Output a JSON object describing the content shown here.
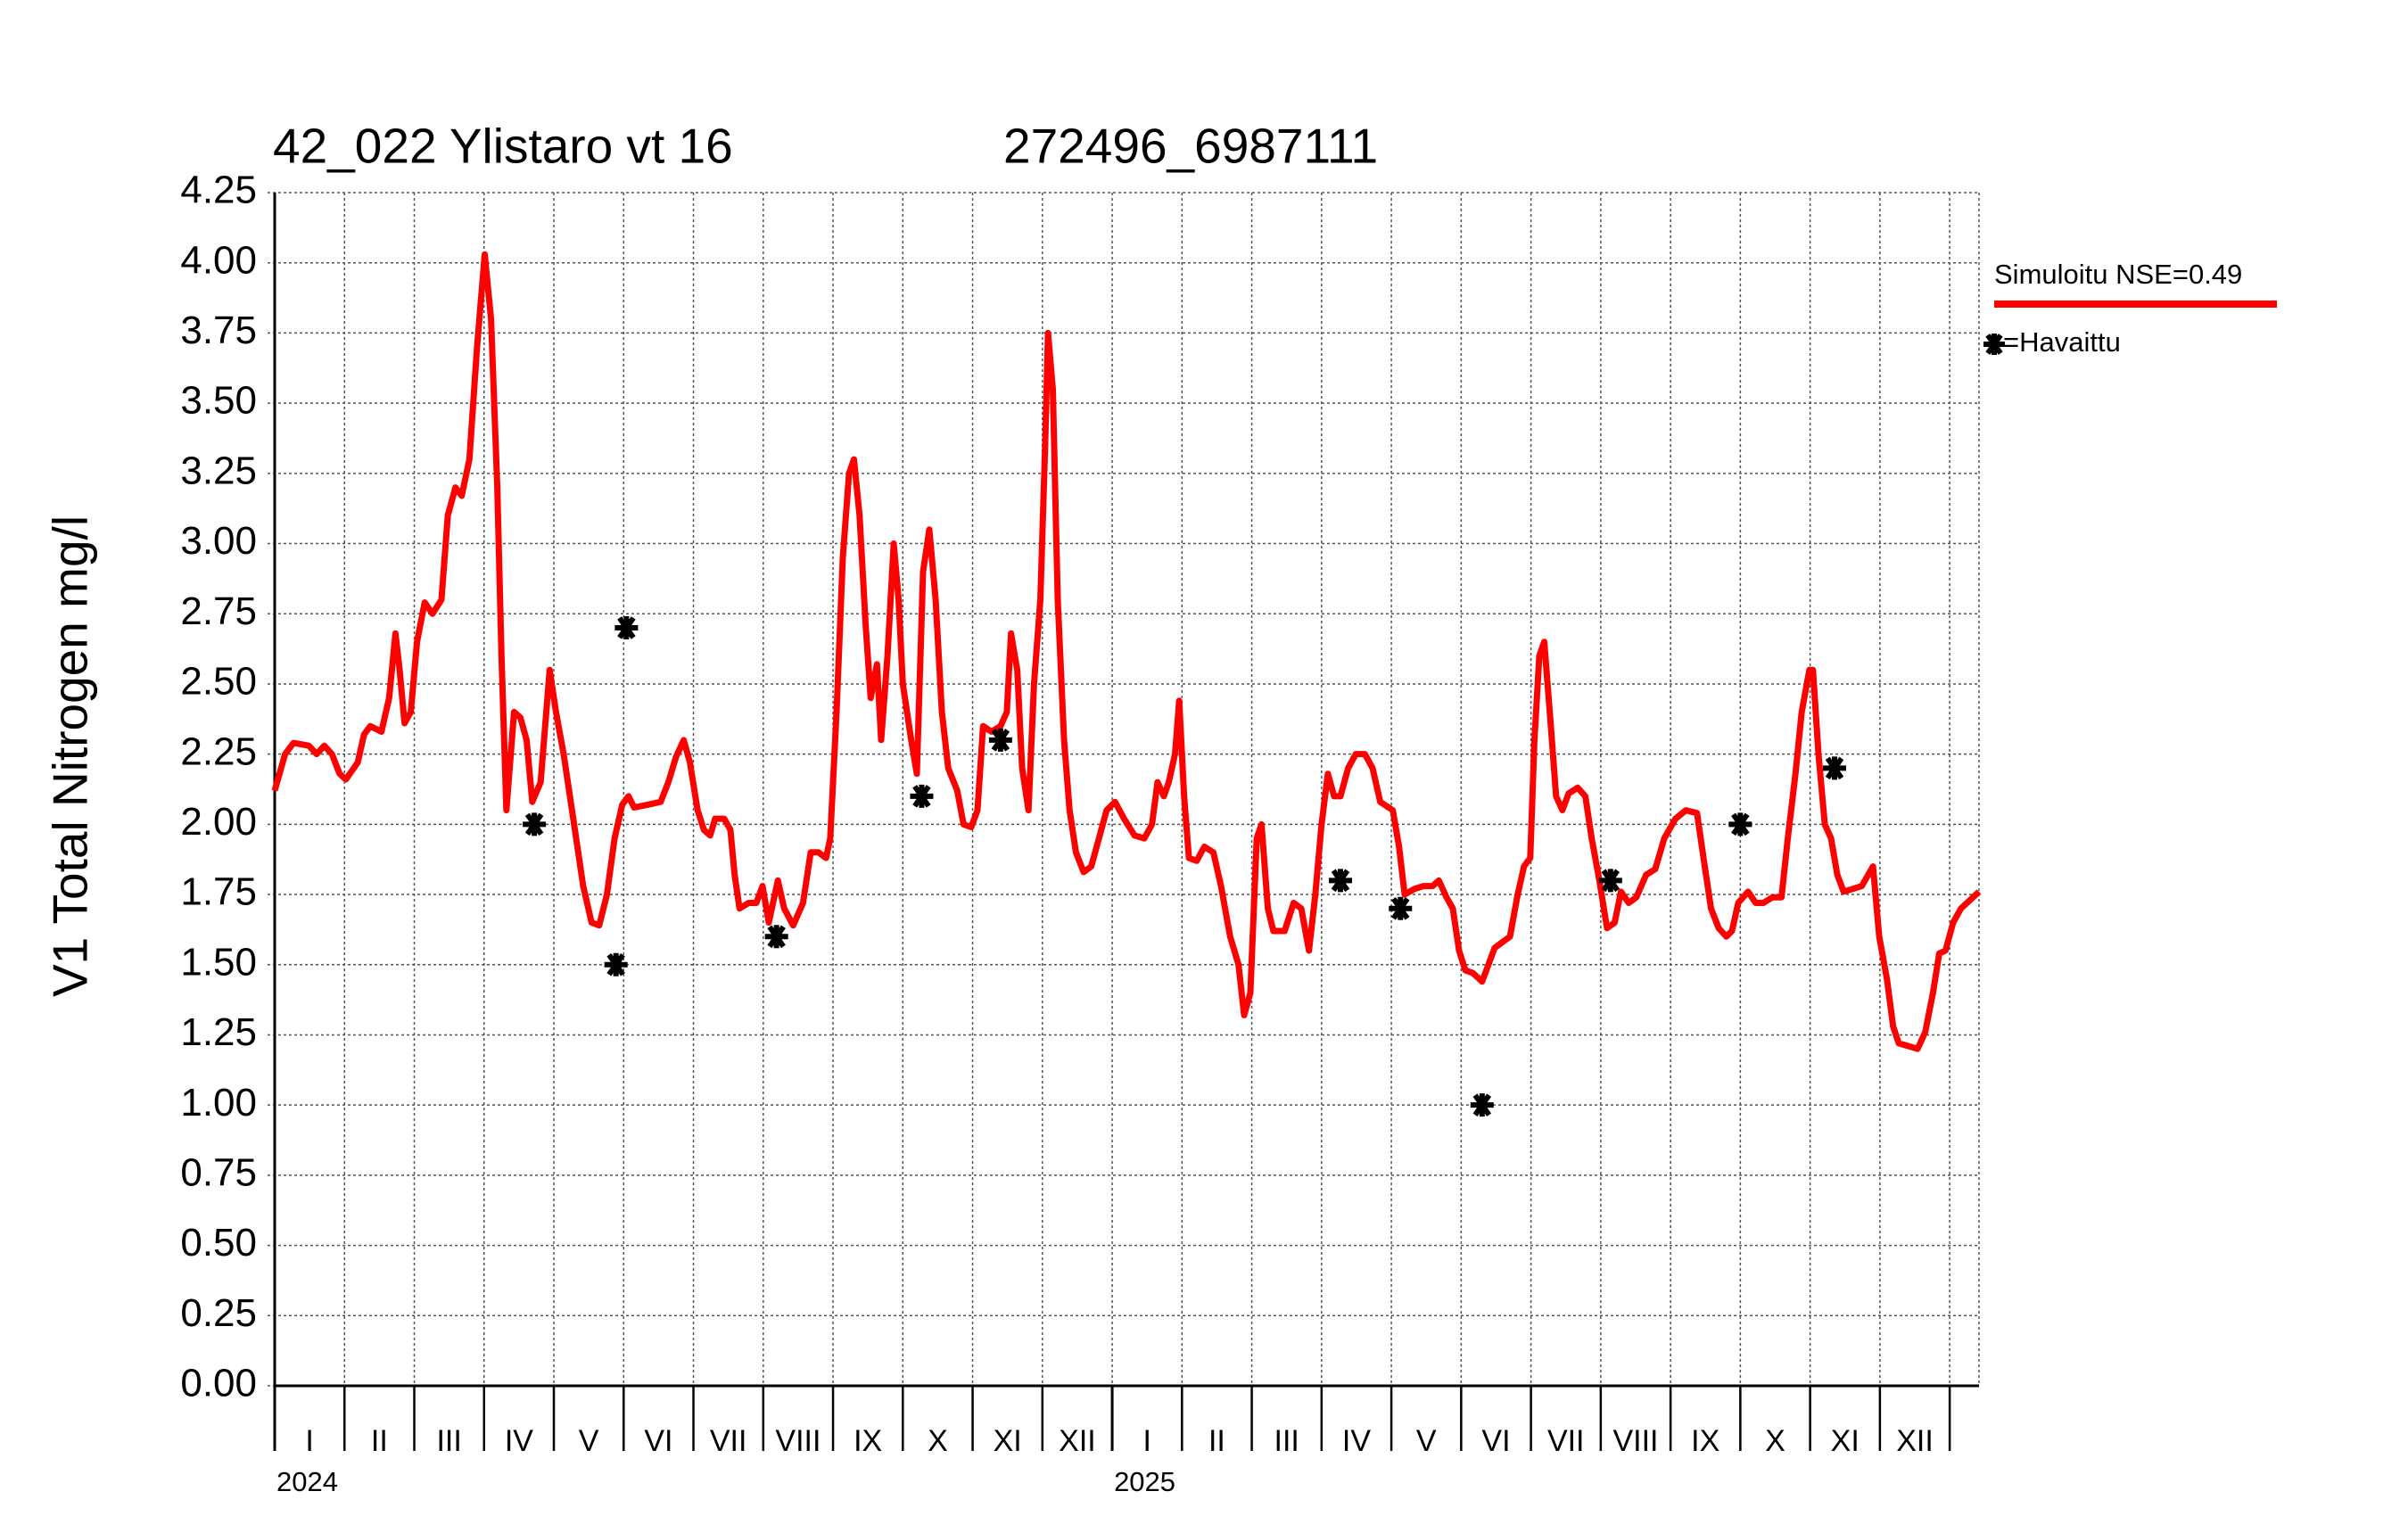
{
  "chart_data": {
    "type": "line",
    "title": "42_022 Ylistaro vt 16",
    "subtitle": "272496_6987111",
    "y_label": "V1 Total Nitrogen mg/l",
    "categories": [
      "I",
      "II",
      "III",
      "IV",
      "V",
      "VI",
      "VII",
      "VIII",
      "IX",
      "X",
      "XI",
      "XII",
      "I",
      "II",
      "III",
      "IV",
      "V",
      "VI",
      "VII",
      "VIII",
      "IX",
      "X",
      "XI",
      "XII"
    ],
    "xticks": [
      {
        "value": 0,
        "label": "2024"
      },
      {
        "value": 12,
        "label": "2025"
      }
    ],
    "xlim": [
      0,
      24.42
    ],
    "ylim": [
      0,
      4.25
    ],
    "yticks": [
      {
        "value": 0,
        "label": "0.00"
      },
      0.25,
      {
        "value": 0.5,
        "label": "0.50"
      },
      0.75,
      {
        "value": 1,
        "label": "1.00"
      },
      1.25,
      {
        "value": 1.5,
        "label": "1.50"
      },
      1.75,
      {
        "value": 2,
        "label": "2.00"
      },
      2.25,
      {
        "value": 2.5,
        "label": "2.50"
      },
      2.75,
      {
        "value": 3,
        "label": "3.00"
      },
      3.25,
      {
        "value": 3.5,
        "label": "3.50"
      },
      3.75,
      {
        "value": 4,
        "label": "4.00"
      },
      4.25
    ],
    "grid": true,
    "series": [
      {
        "name": "Simuloitu NSE=0.49",
        "color": "#ff0000",
        "kind": "line",
        "x": [
          0,
          0.15,
          0.27,
          0.49,
          0.6,
          0.71,
          0.82,
          0.93,
          1.02,
          1.19,
          1.28,
          1.37,
          1.53,
          1.64,
          1.73,
          1.79,
          1.86,
          1.95,
          2.04,
          2.15,
          2.26,
          2.39,
          2.48,
          2.59,
          2.68,
          2.79,
          2.9,
          3.01,
          3.1,
          3.19,
          3.25,
          3.32,
          3.43,
          3.52,
          3.61,
          3.69,
          3.81,
          3.94,
          4.03,
          4.14,
          4.29,
          4.42,
          4.54,
          4.65,
          4.76,
          4.87,
          4.98,
          5.07,
          5.15,
          5.35,
          5.53,
          5.64,
          5.75,
          5.86,
          5.95,
          6.06,
          6.15,
          6.24,
          6.31,
          6.44,
          6.53,
          6.59,
          6.66,
          6.79,
          6.9,
          6.99,
          7.08,
          7.21,
          7.3,
          7.43,
          7.57,
          7.68,
          7.79,
          7.9,
          7.96,
          8.05,
          8.14,
          8.23,
          8.3,
          8.38,
          8.47,
          8.54,
          8.63,
          8.69,
          8.78,
          8.87,
          8.94,
          9.0,
          9.12,
          9.2,
          9.29,
          9.38,
          9.47,
          9.56,
          9.65,
          9.78,
          9.87,
          9.98,
          10.07,
          10.15,
          10.27,
          10.4,
          10.49,
          10.55,
          10.64,
          10.71,
          10.8,
          10.88,
          10.97,
          11.04,
          11.08,
          11.15,
          11.22,
          11.31,
          11.39,
          11.48,
          11.59,
          11.7,
          11.81,
          11.92,
          12.04,
          12.17,
          12.32,
          12.46,
          12.57,
          12.65,
          12.74,
          12.81,
          12.9,
          12.96,
          13.03,
          13.1,
          13.21,
          13.32,
          13.45,
          13.56,
          13.69,
          13.81,
          13.89,
          13.98,
          14.07,
          14.14,
          14.23,
          14.31,
          14.47,
          14.6,
          14.71,
          14.82,
          14.91,
          15.0,
          15.09,
          15.18,
          15.27,
          15.38,
          15.49,
          15.62,
          15.73,
          15.84,
          16.02,
          16.11,
          16.19,
          16.33,
          16.46,
          16.59,
          16.68,
          16.79,
          16.88,
          16.97,
          17.06,
          17.17,
          17.3,
          17.39,
          17.48,
          17.59,
          17.7,
          17.81,
          17.9,
          17.99,
          18.05,
          18.12,
          18.19,
          18.27,
          18.36,
          18.45,
          18.54,
          18.67,
          18.78,
          18.87,
          18.98,
          19.09,
          19.2,
          19.29,
          19.4,
          19.51,
          19.65,
          19.78,
          19.91,
          20.07,
          20.22,
          20.38,
          20.49,
          20.58,
          20.69,
          20.8,
          20.88,
          20.97,
          21.11,
          21.22,
          21.33,
          21.46,
          21.59,
          21.68,
          21.79,
          21.88,
          21.99,
          22.04,
          22.12,
          22.21,
          22.3,
          22.39,
          22.48,
          22.61,
          22.74,
          22.9,
          22.99,
          23.1,
          23.19,
          23.27,
          23.41,
          23.54,
          23.65,
          23.76,
          23.85,
          23.94,
          24.05,
          24.16,
          24.29,
          24.42
        ],
        "values": [
          2.12,
          2.25,
          2.29,
          2.28,
          2.25,
          2.28,
          2.25,
          2.18,
          2.16,
          2.22,
          2.32,
          2.35,
          2.33,
          2.45,
          2.68,
          2.55,
          2.36,
          2.4,
          2.65,
          2.79,
          2.75,
          2.8,
          3.1,
          3.2,
          3.17,
          3.3,
          3.7,
          4.03,
          3.8,
          3.2,
          2.6,
          2.05,
          2.4,
          2.38,
          2.3,
          2.08,
          2.15,
          2.55,
          2.4,
          2.25,
          2.0,
          1.78,
          1.65,
          1.64,
          1.75,
          1.95,
          2.07,
          2.1,
          2.06,
          2.07,
          2.08,
          2.15,
          2.24,
          2.3,
          2.22,
          2.05,
          1.98,
          1.96,
          2.02,
          2.02,
          1.98,
          1.82,
          1.7,
          1.72,
          1.72,
          1.78,
          1.65,
          1.8,
          1.7,
          1.64,
          1.72,
          1.9,
          1.9,
          1.88,
          1.95,
          2.4,
          2.95,
          3.25,
          3.3,
          3.1,
          2.7,
          2.45,
          2.57,
          2.3,
          2.6,
          3.0,
          2.8,
          2.5,
          2.3,
          2.18,
          2.9,
          3.05,
          2.8,
          2.4,
          2.2,
          2.12,
          2.0,
          1.99,
          2.05,
          2.35,
          2.33,
          2.35,
          2.4,
          2.68,
          2.55,
          2.2,
          2.05,
          2.5,
          2.8,
          3.35,
          3.75,
          3.55,
          2.8,
          2.3,
          2.05,
          1.9,
          1.83,
          1.85,
          1.95,
          2.05,
          2.08,
          2.02,
          1.96,
          1.95,
          2.0,
          2.15,
          2.1,
          2.15,
          2.25,
          2.44,
          2.1,
          1.88,
          1.87,
          1.92,
          1.9,
          1.78,
          1.6,
          1.5,
          1.32,
          1.4,
          1.95,
          2.0,
          1.7,
          1.62,
          1.62,
          1.72,
          1.7,
          1.55,
          1.75,
          2.0,
          2.18,
          2.1,
          2.1,
          2.2,
          2.25,
          2.25,
          2.2,
          2.08,
          2.05,
          1.92,
          1.75,
          1.77,
          1.78,
          1.78,
          1.8,
          1.74,
          1.7,
          1.55,
          1.48,
          1.47,
          1.44,
          1.5,
          1.56,
          1.58,
          1.6,
          1.75,
          1.85,
          1.88,
          2.3,
          2.6,
          2.65,
          2.4,
          2.1,
          2.05,
          2.11,
          2.13,
          2.1,
          1.95,
          1.8,
          1.63,
          1.65,
          1.76,
          1.72,
          1.74,
          1.82,
          1.84,
          1.95,
          2.02,
          2.05,
          2.04,
          1.85,
          1.7,
          1.63,
          1.6,
          1.62,
          1.72,
          1.76,
          1.72,
          1.72,
          1.74,
          1.74,
          1.95,
          2.18,
          2.4,
          2.55,
          2.55,
          2.25,
          2.0,
          1.95,
          1.82,
          1.76,
          1.77,
          1.78,
          1.85,
          1.6,
          1.45,
          1.28,
          1.22,
          1.21,
          1.2,
          1.26,
          1.4,
          1.54,
          1.55,
          1.65,
          1.7,
          1.73,
          1.76
        ]
      },
      {
        "name": "=Havaittu",
        "color": "#000000",
        "kind": "marker",
        "x": [
          3.72,
          4.89,
          5.04,
          7.19,
          9.27,
          10.4,
          15.27,
          16.13,
          17.3,
          19.14,
          21.0,
          22.35
        ],
        "values": [
          2.0,
          1.5,
          2.7,
          1.6,
          2.1,
          2.3,
          1.8,
          1.7,
          1.0,
          1.8,
          2.0,
          2.2
        ]
      }
    ]
  }
}
